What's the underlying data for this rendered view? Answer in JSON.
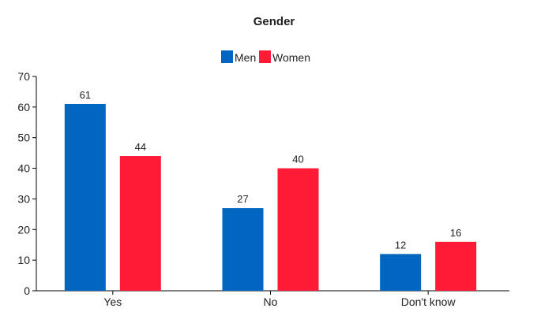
{
  "chart_data": {
    "type": "bar",
    "title": "Gender",
    "xlabel": "",
    "ylabel": "",
    "categories": [
      "Yes",
      "No",
      "Don't know"
    ],
    "series": [
      {
        "name": "Men",
        "values": [
          61,
          27,
          12
        ],
        "color": "#0066bf"
      },
      {
        "name": "Women",
        "values": [
          44,
          40,
          16
        ],
        "color": "#ff1a35"
      }
    ],
    "ylim": [
      0,
      70
    ],
    "yticks": [
      0,
      10,
      20,
      30,
      40,
      50,
      60,
      70
    ],
    "grid": false,
    "legend_position": "top-center",
    "data_labels": true
  }
}
